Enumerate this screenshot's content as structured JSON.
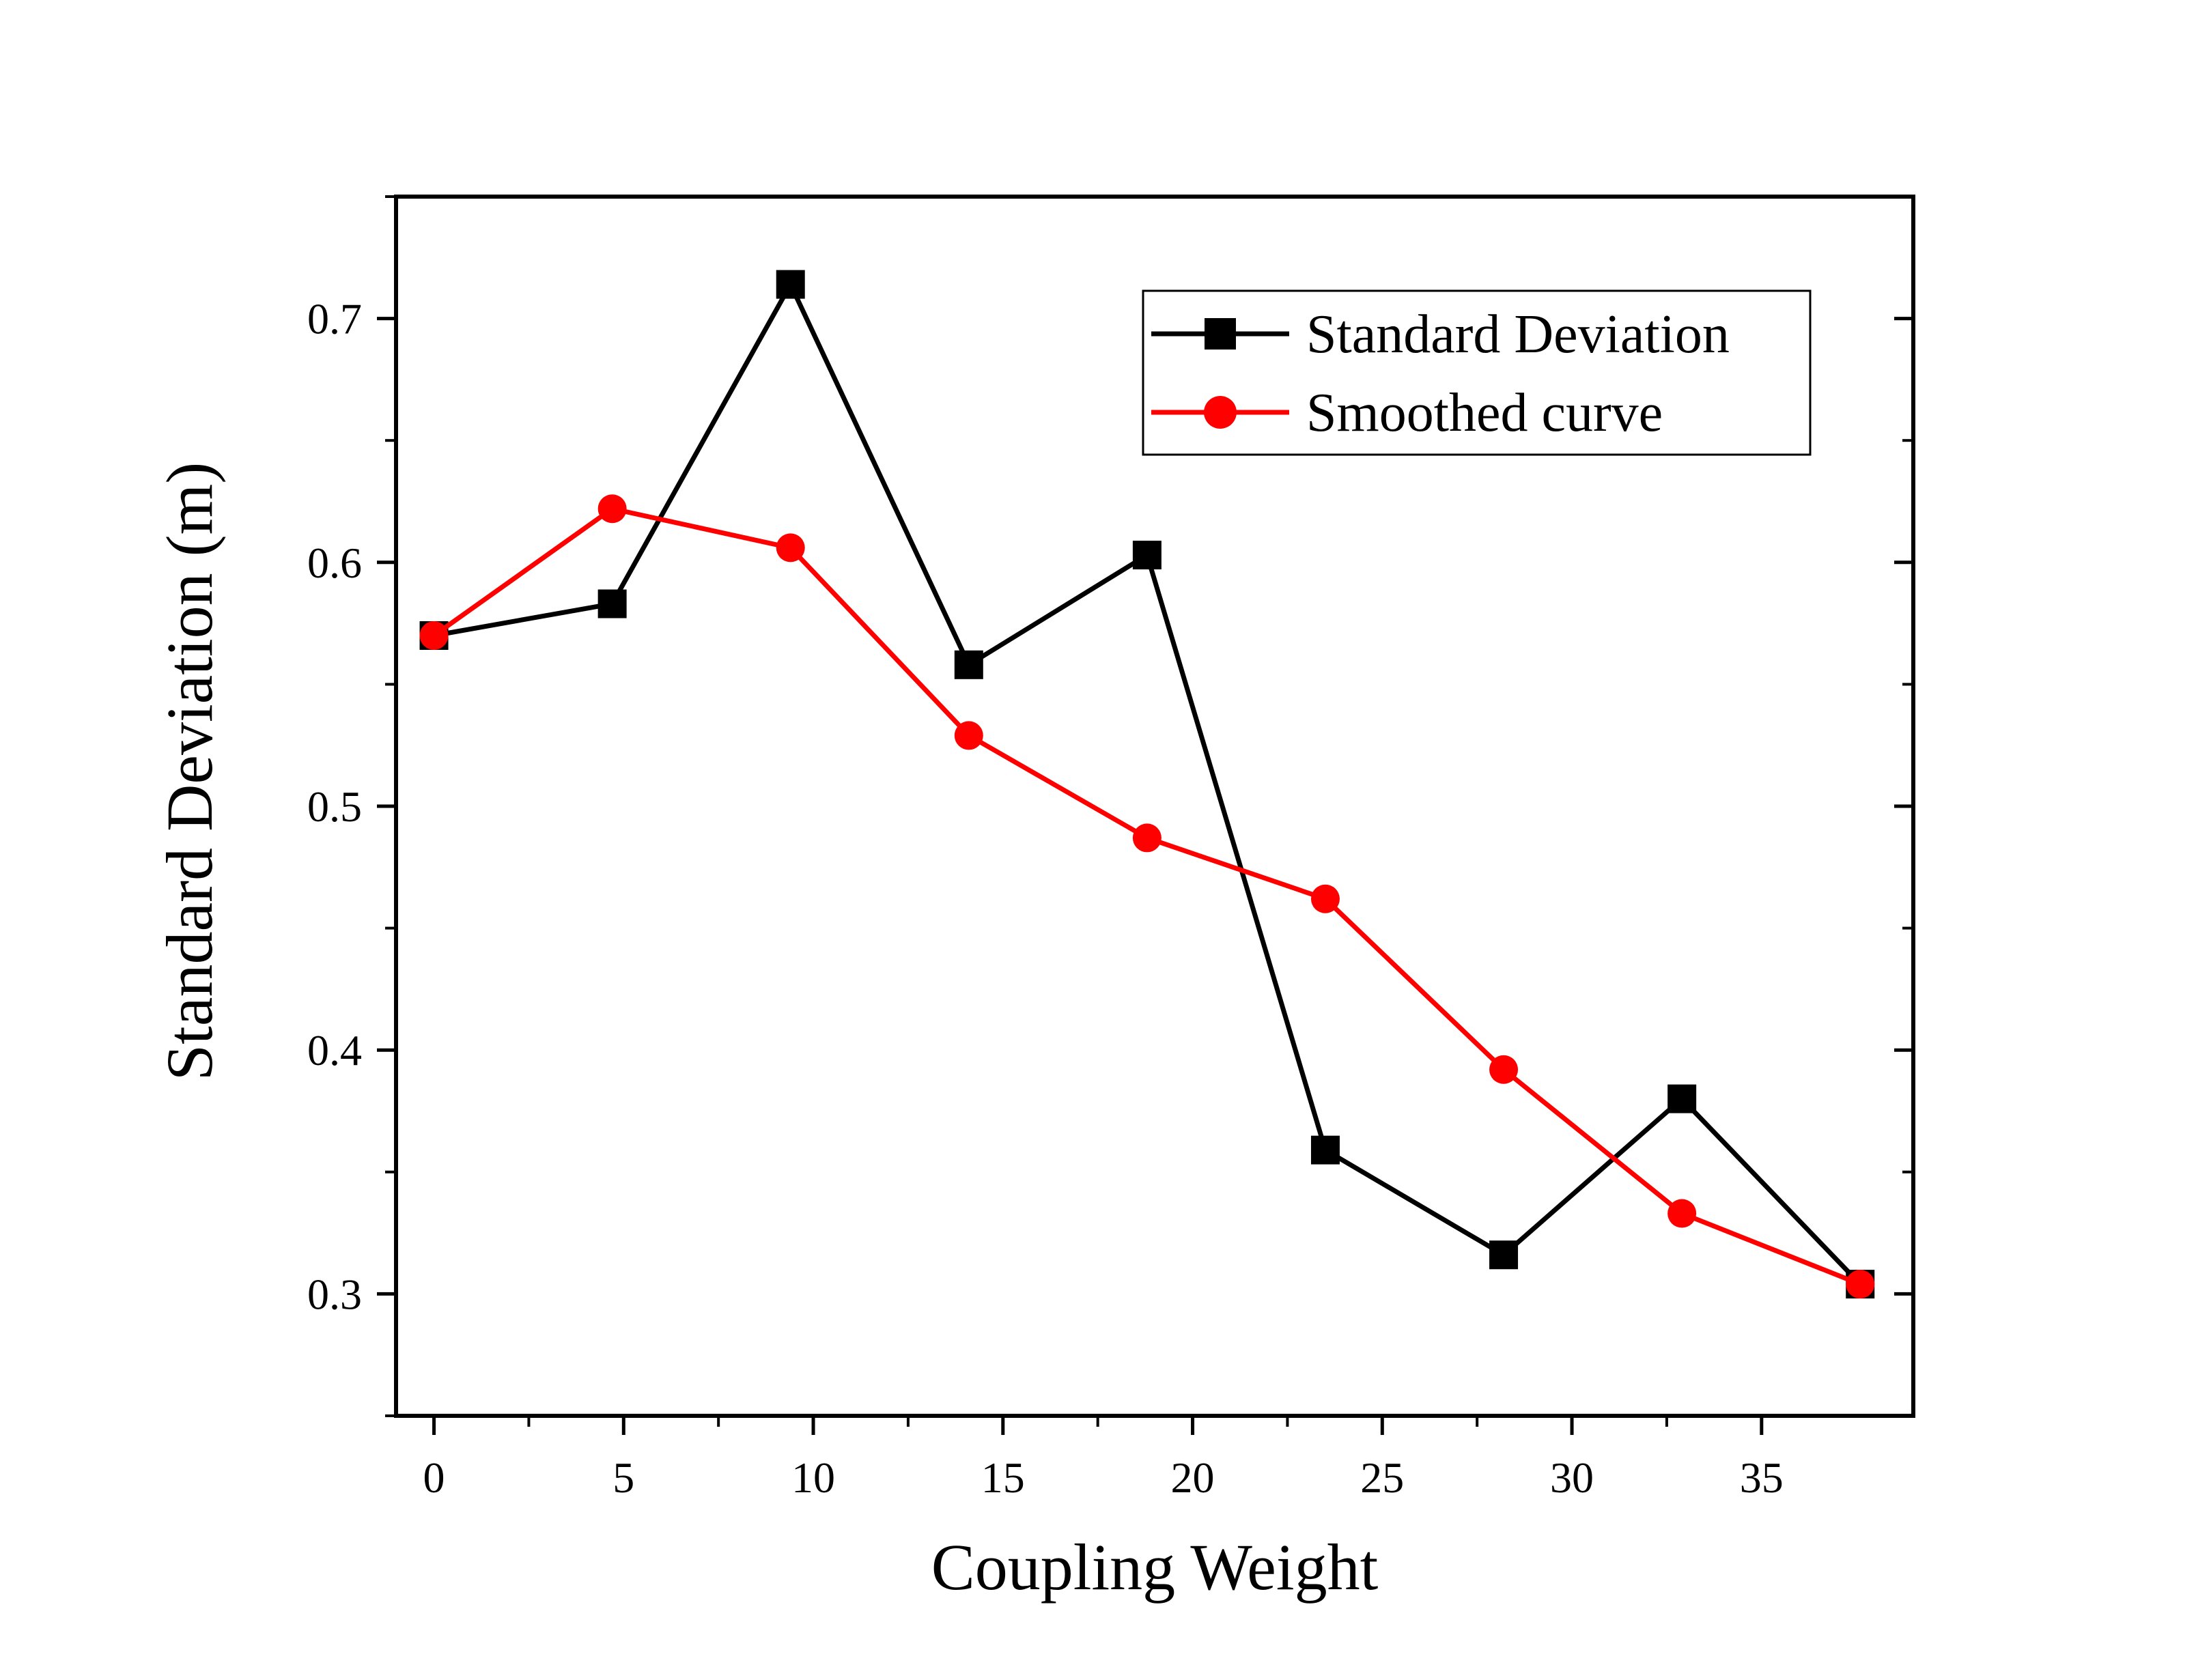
{
  "chart_data": {
    "type": "line",
    "title": "",
    "xlabel": "Coupling Weight",
    "ylabel": "Standard Deviation (m)",
    "xlim": [
      -1,
      39
    ],
    "ylim": [
      0.25,
      0.75
    ],
    "xticks": [
      0,
      5,
      10,
      15,
      20,
      25,
      30,
      35
    ],
    "yticks": [
      0.3,
      0.4,
      0.5,
      0.6,
      0.7
    ],
    "xtick_labels": [
      "0",
      "5",
      "10",
      "15",
      "20",
      "25",
      "30",
      "35"
    ],
    "ytick_labels": [
      "0.3",
      "0.4",
      "0.5",
      "0.6",
      "0.7"
    ],
    "x": [
      0,
      4.7,
      9.4,
      14.1,
      18.8,
      23.5,
      28.2,
      32.9,
      37.6
    ],
    "grid": false,
    "legend_position": "top-right",
    "series": [
      {
        "name": "Standard Deviation",
        "color": "#000000",
        "marker": "square",
        "values": [
          0.57,
          0.583,
          0.714,
          0.558,
          0.603,
          0.359,
          0.316,
          0.38,
          0.304
        ]
      },
      {
        "name": "Smoothed curve",
        "color": "#ff0000",
        "marker": "circle",
        "values": [
          0.57,
          0.622,
          0.606,
          0.529,
          0.487,
          0.462,
          0.392,
          0.333,
          0.304
        ]
      }
    ]
  }
}
